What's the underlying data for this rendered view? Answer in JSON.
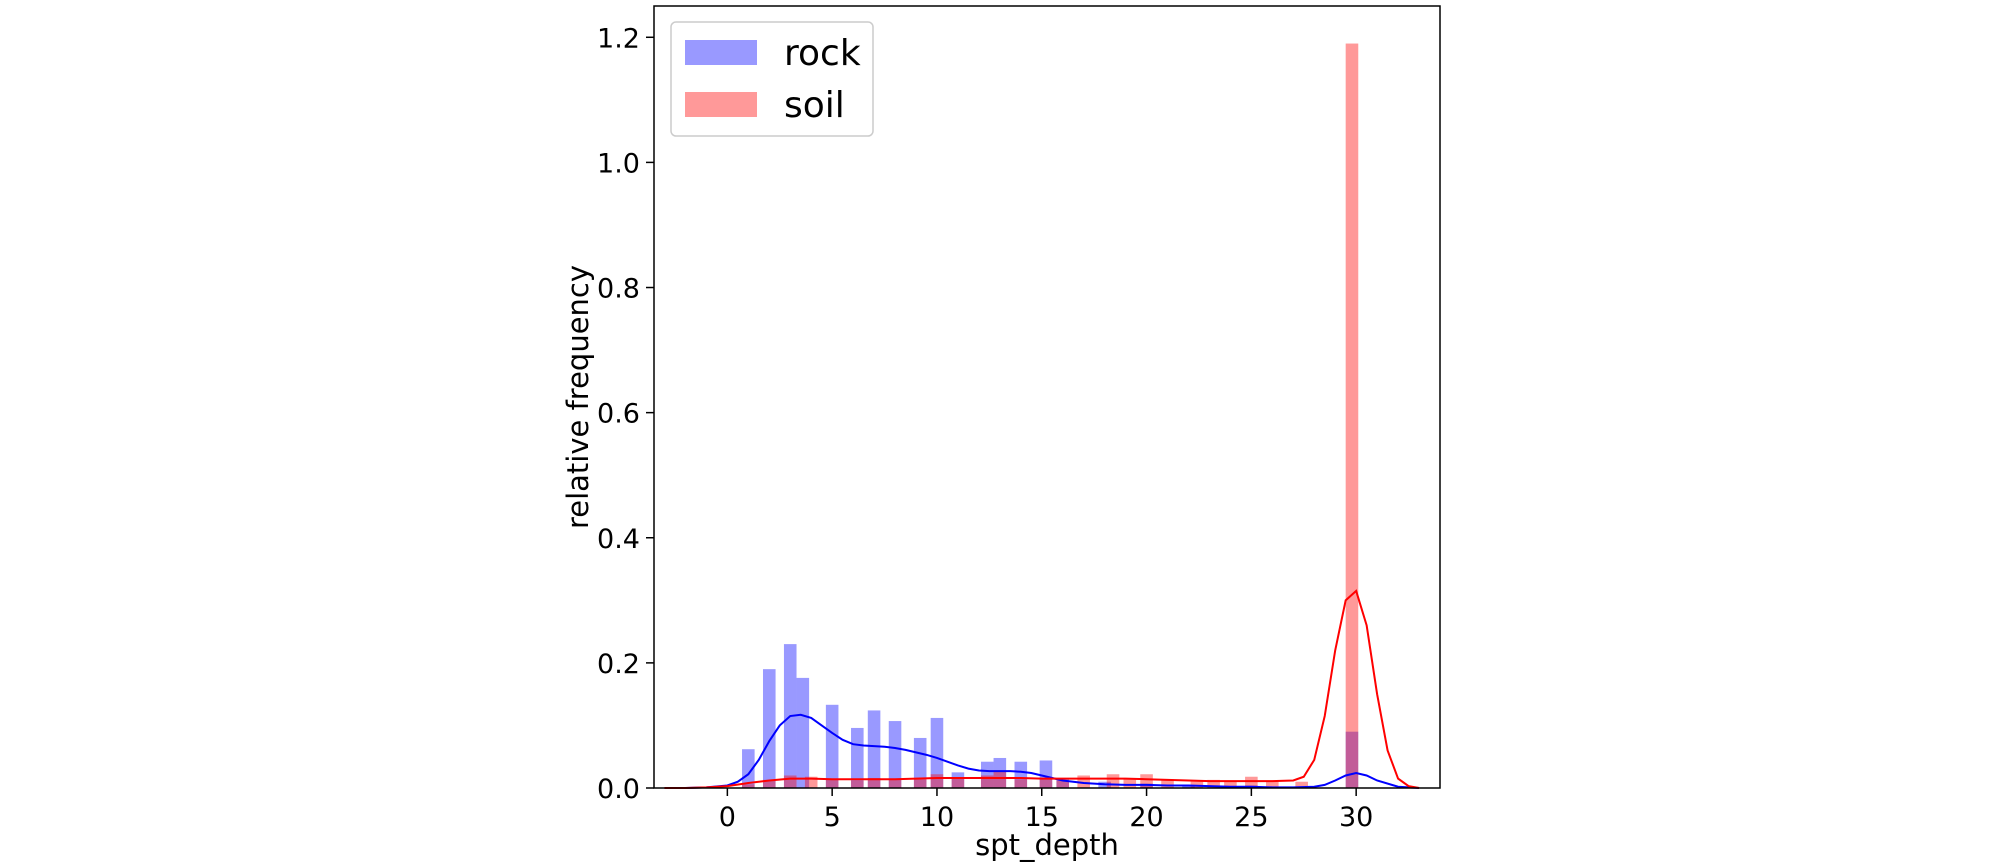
{
  "chart_data": {
    "type": "bar",
    "title": "",
    "xlabel": "spt_depth",
    "ylabel": "relative frequency",
    "xlim": [
      -3.5,
      34
    ],
    "ylim": [
      0,
      1.25
    ],
    "xticks": [
      0,
      5,
      10,
      15,
      20,
      25,
      30
    ],
    "yticks": [
      0.0,
      0.2,
      0.4,
      0.6,
      0.8,
      1.0,
      1.2
    ],
    "xtick_labels": [
      "0",
      "5",
      "10",
      "15",
      "20",
      "25",
      "30"
    ],
    "ytick_labels": [
      "0.0",
      "0.2",
      "0.4",
      "0.6",
      "0.8",
      "1.0",
      "1.2"
    ],
    "bar_width": 0.6,
    "legend_position": "upper-left",
    "grid": false,
    "series": [
      {
        "name": "rock",
        "color": "#0000ff",
        "bars": [
          {
            "x": 1.0,
            "y": 0.062
          },
          {
            "x": 2.0,
            "y": 0.19
          },
          {
            "x": 3.0,
            "y": 0.23
          },
          {
            "x": 3.6,
            "y": 0.176
          },
          {
            "x": 5.0,
            "y": 0.133
          },
          {
            "x": 6.2,
            "y": 0.096
          },
          {
            "x": 7.0,
            "y": 0.124
          },
          {
            "x": 8.0,
            "y": 0.107
          },
          {
            "x": 9.2,
            "y": 0.08
          },
          {
            "x": 10.0,
            "y": 0.112
          },
          {
            "x": 11.0,
            "y": 0.025
          },
          {
            "x": 12.4,
            "y": 0.042
          },
          {
            "x": 13.0,
            "y": 0.048
          },
          {
            "x": 14.0,
            "y": 0.042
          },
          {
            "x": 15.2,
            "y": 0.044
          },
          {
            "x": 16.0,
            "y": 0.015
          },
          {
            "x": 18.0,
            "y": 0.01
          },
          {
            "x": 20.0,
            "y": 0.007
          },
          {
            "x": 22.0,
            "y": 0.004
          },
          {
            "x": 25.0,
            "y": 0.004
          },
          {
            "x": 29.8,
            "y": 0.09
          }
        ],
        "kde": {
          "x": [
            -3,
            -2,
            -1,
            0,
            0.5,
            1,
            1.5,
            2,
            2.5,
            3,
            3.5,
            4,
            4.5,
            5,
            5.5,
            6,
            6.5,
            7,
            7.5,
            8,
            8.5,
            9,
            9.5,
            10,
            10.5,
            11,
            11.5,
            12,
            12.5,
            13,
            13.5,
            14,
            14.5,
            15,
            15.5,
            16,
            17,
            18,
            19,
            20,
            21,
            22,
            23,
            24,
            25,
            26,
            27,
            28,
            28.5,
            29,
            29.5,
            30,
            30.5,
            31,
            32,
            33
          ],
          "y": [
            0.0,
            0.0,
            0.001,
            0.004,
            0.01,
            0.022,
            0.045,
            0.075,
            0.1,
            0.115,
            0.117,
            0.112,
            0.1,
            0.088,
            0.077,
            0.07,
            0.068,
            0.067,
            0.066,
            0.064,
            0.061,
            0.057,
            0.053,
            0.048,
            0.042,
            0.036,
            0.031,
            0.028,
            0.027,
            0.027,
            0.027,
            0.026,
            0.024,
            0.02,
            0.016,
            0.012,
            0.008,
            0.006,
            0.005,
            0.005,
            0.004,
            0.004,
            0.003,
            0.002,
            0.002,
            0.001,
            0.001,
            0.002,
            0.005,
            0.012,
            0.02,
            0.024,
            0.02,
            0.012,
            0.002,
            0.0
          ]
        }
      },
      {
        "name": "soil",
        "color": "#ff0000",
        "bars": [
          {
            "x": 1.0,
            "y": 0.006
          },
          {
            "x": 2.0,
            "y": 0.013
          },
          {
            "x": 3.0,
            "y": 0.02
          },
          {
            "x": 4.0,
            "y": 0.018
          },
          {
            "x": 5.0,
            "y": 0.015
          },
          {
            "x": 6.2,
            "y": 0.012
          },
          {
            "x": 7.0,
            "y": 0.016
          },
          {
            "x": 8.0,
            "y": 0.013
          },
          {
            "x": 9.2,
            "y": 0.014
          },
          {
            "x": 10.0,
            "y": 0.022
          },
          {
            "x": 11.0,
            "y": 0.015
          },
          {
            "x": 12.4,
            "y": 0.02
          },
          {
            "x": 13.0,
            "y": 0.026
          },
          {
            "x": 14.0,
            "y": 0.014
          },
          {
            "x": 15.2,
            "y": 0.015
          },
          {
            "x": 16.0,
            "y": 0.012
          },
          {
            "x": 17.0,
            "y": 0.02
          },
          {
            "x": 18.4,
            "y": 0.022
          },
          {
            "x": 19.2,
            "y": 0.014
          },
          {
            "x": 20.0,
            "y": 0.022
          },
          {
            "x": 21.0,
            "y": 0.014
          },
          {
            "x": 22.4,
            "y": 0.012
          },
          {
            "x": 23.2,
            "y": 0.013
          },
          {
            "x": 24.0,
            "y": 0.011
          },
          {
            "x": 25.0,
            "y": 0.018
          },
          {
            "x": 26.0,
            "y": 0.01
          },
          {
            "x": 27.4,
            "y": 0.01
          },
          {
            "x": 29.8,
            "y": 1.19
          }
        ],
        "kde": {
          "x": [
            -3,
            -2,
            -1,
            0,
            1,
            2,
            3,
            4,
            5,
            6,
            7,
            8,
            9,
            10,
            11,
            12,
            13,
            14,
            15,
            16,
            17,
            18,
            19,
            20,
            21,
            22,
            23,
            24,
            25,
            26,
            27,
            27.5,
            28,
            28.5,
            29,
            29.5,
            30,
            30.5,
            31,
            31.5,
            32,
            32.5,
            33
          ],
          "y": [
            0.0,
            0.0,
            0.001,
            0.003,
            0.008,
            0.012,
            0.015,
            0.015,
            0.014,
            0.014,
            0.014,
            0.014,
            0.015,
            0.016,
            0.016,
            0.016,
            0.016,
            0.016,
            0.015,
            0.015,
            0.015,
            0.015,
            0.015,
            0.014,
            0.013,
            0.012,
            0.011,
            0.011,
            0.011,
            0.011,
            0.012,
            0.018,
            0.045,
            0.115,
            0.22,
            0.3,
            0.315,
            0.26,
            0.15,
            0.06,
            0.015,
            0.003,
            0.0
          ]
        }
      }
    ]
  }
}
